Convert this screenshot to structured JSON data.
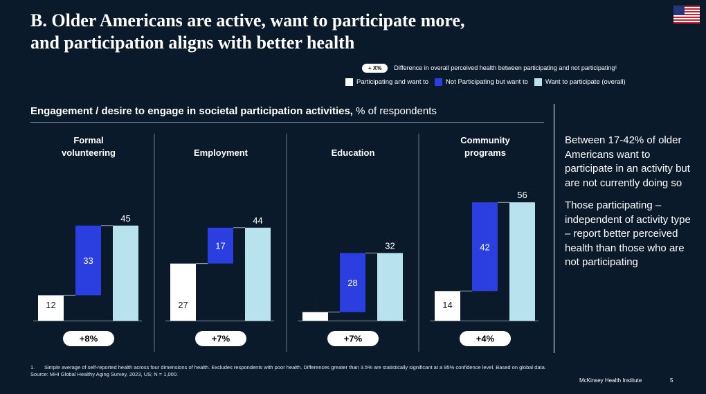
{
  "title": {
    "line1": "B. Older Americans are active, want to participate more,",
    "line2": "and participation aligns with better health"
  },
  "flag_icon": "us-flag",
  "legend_note": {
    "pill": "+ X%",
    "text": "Difference in overall perceived health between participating and not participating¹"
  },
  "colors": {
    "participating": "#ffffff",
    "not_participating": "#2b3fe0",
    "want_overall": "#b8e2ee",
    "background": "#0b1a2b"
  },
  "subtitle": {
    "bold": "Engagement / desire to engage in societal participation activities,",
    "rest": " % of respondents"
  },
  "chart_data": {
    "type": "bar",
    "series": [
      {
        "name": "Participating and want to",
        "values": [
          12,
          27,
          4,
          14
        ]
      },
      {
        "name": "Not Participating but want to",
        "values": [
          33,
          17,
          28,
          42
        ]
      },
      {
        "name": "Want to participate (overall)",
        "values": [
          45,
          44,
          32,
          56
        ]
      }
    ],
    "panels": [
      {
        "title": [
          "Formal",
          "volunteering"
        ],
        "diff": "+8%"
      },
      {
        "title": [
          "Employment"
        ],
        "diff": "+7%"
      },
      {
        "title": [
          "Education"
        ],
        "diff": "+7%"
      },
      {
        "title": [
          "Community",
          "programs"
        ],
        "diff": "+4%"
      }
    ]
  },
  "side_text": {
    "p1": "Between 17-42% of older Americans want to participate in an activity but are not currently doing so",
    "p2": "Those participating – independent of activity type – report better perceived health than those who are not participating"
  },
  "footnote": {
    "num": "1.",
    "text": "Simple average of self-reported health across four dimensions of health. Excludes respondents with poor health. Differences greater than 3.5% are statistically significant at a 95% confidence level. Based on global data.",
    "source": "Source: MHI Global Healthy Aging Survey, 2023, US; N = 1,000."
  },
  "brand": "McKinsey Health Institute",
  "page_number": "5"
}
